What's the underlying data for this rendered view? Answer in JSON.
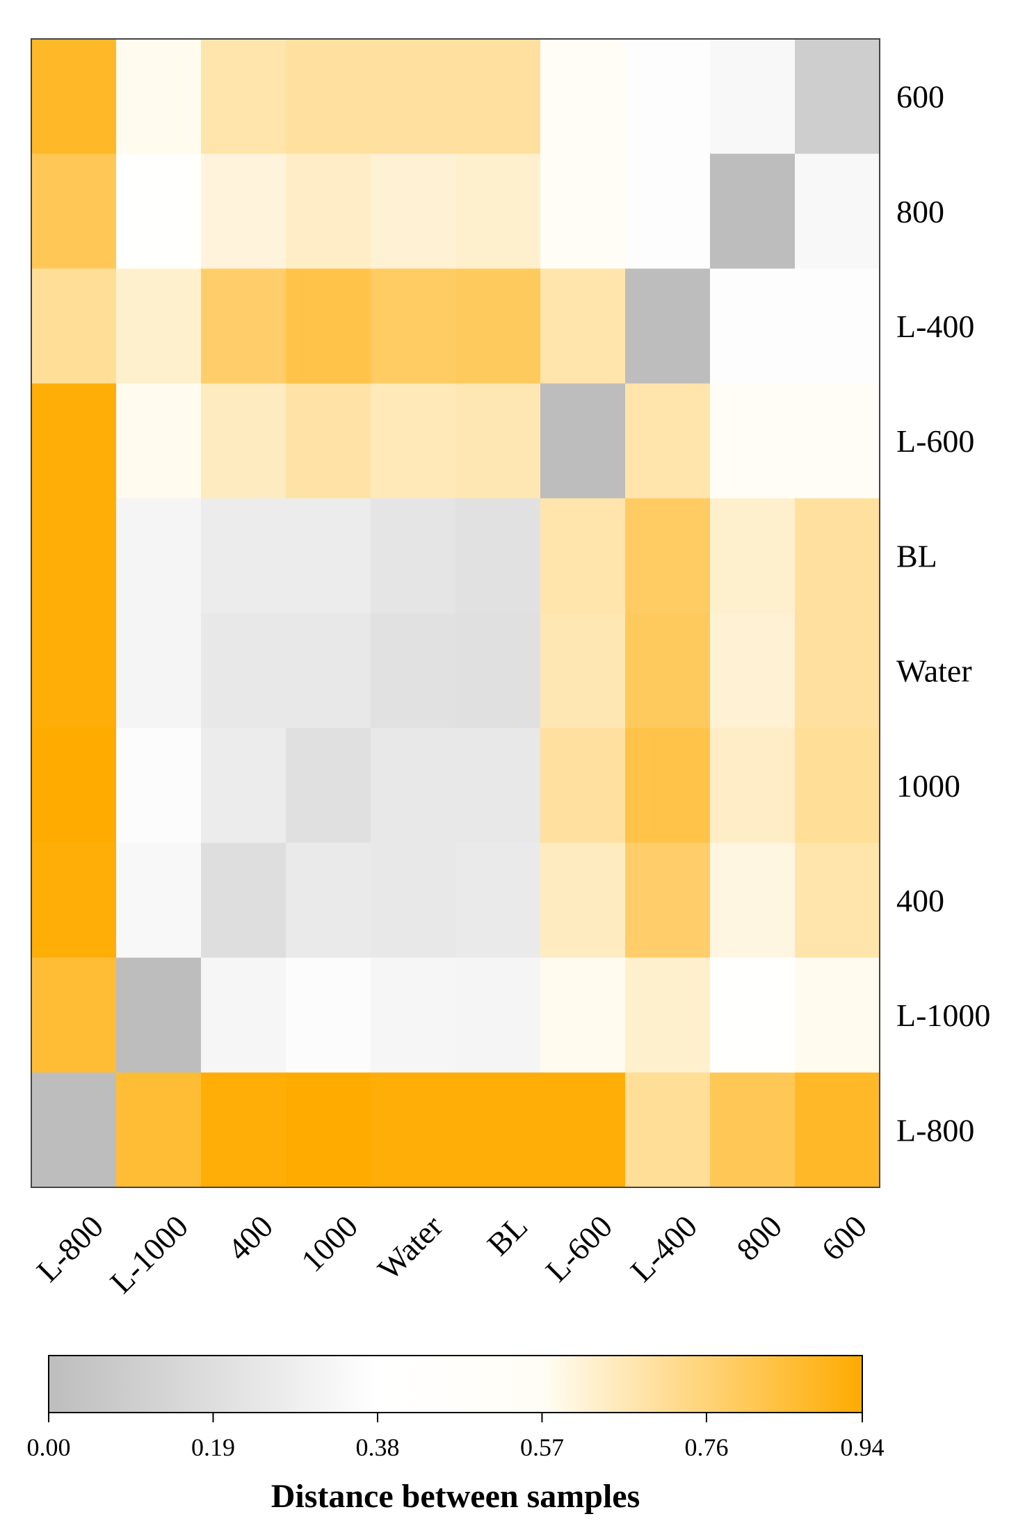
{
  "chart_data": {
    "type": "heatmap",
    "title": "",
    "x_labels": [
      "L-800",
      "L-1000",
      "400",
      "1000",
      "Water",
      "BL",
      "L-600",
      "L-400",
      "800",
      "600"
    ],
    "y_labels": [
      "600",
      "800",
      "L-400",
      "L-600",
      "BL",
      "Water",
      "1000",
      "400",
      "L-1000",
      "L-800"
    ],
    "values": [
      [
        0.88,
        0.58,
        0.68,
        0.7,
        0.7,
        0.7,
        0.57,
        0.37,
        0.34,
        0.1
      ],
      [
        0.81,
        0.4,
        0.61,
        0.64,
        0.62,
        0.63,
        0.57,
        0.37,
        0.0,
        0.34
      ],
      [
        0.71,
        0.63,
        0.78,
        0.83,
        0.79,
        0.8,
        0.68,
        0.0,
        0.37,
        0.37
      ],
      [
        0.93,
        0.58,
        0.65,
        0.69,
        0.66,
        0.67,
        0.0,
        0.68,
        0.57,
        0.57
      ],
      [
        0.93,
        0.32,
        0.27,
        0.27,
        0.23,
        0.21,
        0.68,
        0.79,
        0.63,
        0.7
      ],
      [
        0.93,
        0.32,
        0.25,
        0.25,
        0.21,
        0.2,
        0.67,
        0.8,
        0.62,
        0.7
      ],
      [
        0.94,
        0.36,
        0.27,
        0.2,
        0.25,
        0.25,
        0.7,
        0.83,
        0.64,
        0.71
      ],
      [
        0.93,
        0.34,
        0.19,
        0.26,
        0.25,
        0.26,
        0.65,
        0.78,
        0.6,
        0.68
      ],
      [
        0.86,
        0.0,
        0.33,
        0.36,
        0.33,
        0.32,
        0.58,
        0.63,
        0.4,
        0.58
      ],
      [
        0.0,
        0.86,
        0.93,
        0.94,
        0.93,
        0.93,
        0.93,
        0.71,
        0.81,
        0.88
      ]
    ],
    "colorbar": {
      "min": 0.0,
      "max": 0.94,
      "ticks": [
        "0.00",
        "0.19",
        "0.38",
        "0.57",
        "0.76",
        "0.94"
      ],
      "colors": [
        "#BDBDBD",
        "#FFFFFF",
        "#FFFDF5",
        "#FFAB00"
      ],
      "stops": [
        0.0,
        0.38,
        0.57,
        0.94
      ],
      "title": "Distance between samples"
    }
  }
}
